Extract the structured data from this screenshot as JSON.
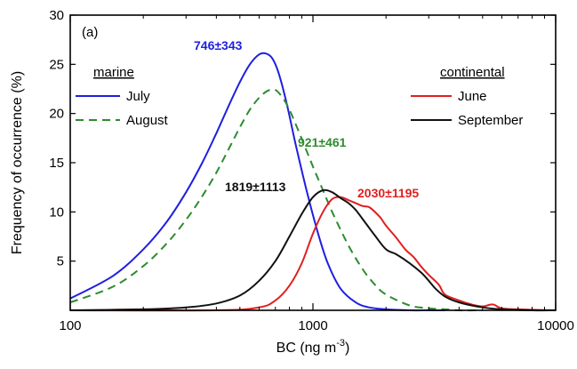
{
  "chart_data": {
    "type": "line",
    "panel_label": "(a)",
    "xlabel": "BC (ng m",
    "xlabel_sup": "-3",
    "xlabel_end": ")",
    "ylabel": "Frequency of occurrence (%)",
    "x_scale": "log",
    "xlim": [
      100,
      10000
    ],
    "ylim": [
      0,
      30
    ],
    "x_ticks": [
      100,
      1000,
      10000
    ],
    "x_tick_labels": [
      "100",
      "1000",
      "10000"
    ],
    "y_ticks": [
      5,
      10,
      15,
      20,
      25,
      30
    ],
    "y_tick_labels": [
      "5",
      "10",
      "15",
      "20",
      "25",
      "30"
    ],
    "grid": false,
    "legend_groups": [
      {
        "title": "marine",
        "placement": "top-left",
        "entries": [
          "July",
          "August"
        ]
      },
      {
        "title": "continental",
        "placement": "top-right",
        "entries": [
          "June",
          "September"
        ]
      }
    ],
    "series": [
      {
        "name": "July",
        "group": "marine",
        "color": "#1f1fe0",
        "dash": "solid",
        "annotation": "746±343",
        "annotation_color": "#1f1fe0",
        "x": [
          100,
          150,
          200,
          250,
          300,
          350,
          400,
          450,
          500,
          550,
          600,
          640,
          680,
          720,
          780,
          850,
          950,
          1050,
          1150,
          1300,
          1500,
          1700,
          2000,
          2500,
          3000,
          3500
        ],
        "y": [
          1.2,
          3.5,
          6.2,
          9.0,
          12.0,
          15.0,
          18.0,
          20.8,
          23.2,
          25.0,
          26.0,
          26.1,
          25.6,
          24.2,
          21.0,
          16.8,
          11.8,
          7.8,
          4.8,
          2.2,
          0.8,
          0.3,
          0.1,
          0.0,
          0.0,
          0.0
        ]
      },
      {
        "name": "August",
        "group": "marine",
        "color": "#2e8b2e",
        "dash": "dashed",
        "annotation": "921±461",
        "annotation_color": "#2e8b2e",
        "x": [
          100,
          150,
          200,
          250,
          300,
          350,
          400,
          450,
          500,
          550,
          600,
          650,
          700,
          750,
          800,
          900,
          1000,
          1100,
          1200,
          1400,
          1600,
          1800,
          2000,
          2500,
          3000,
          3500,
          4000,
          5000
        ],
        "y": [
          0.8,
          2.4,
          4.5,
          6.8,
          9.2,
          11.6,
          14.0,
          16.4,
          18.6,
          20.4,
          21.6,
          22.3,
          22.4,
          21.6,
          20.4,
          17.4,
          14.6,
          12.2,
          10.0,
          6.6,
          4.2,
          2.6,
          1.6,
          0.5,
          0.2,
          0.1,
          0.0,
          0.0
        ]
      },
      {
        "name": "June",
        "group": "continental",
        "color": "#e01f1f",
        "dash": "solid",
        "annotation": "2030±1195",
        "annotation_color": "#e01f1f",
        "x": [
          100,
          400,
          600,
          700,
          800,
          900,
          1000,
          1100,
          1200,
          1300,
          1400,
          1500,
          1600,
          1700,
          1800,
          1900,
          2000,
          2200,
          2400,
          2600,
          2800,
          3000,
          3300,
          3500,
          4000,
          4500,
          5000,
          5500,
          6000,
          7000,
          8000,
          10000
        ],
        "y": [
          0.0,
          0.0,
          0.3,
          1.0,
          2.5,
          4.8,
          7.8,
          10.0,
          11.3,
          11.5,
          11.2,
          10.9,
          10.6,
          10.5,
          10.0,
          9.4,
          8.6,
          7.4,
          6.2,
          5.4,
          4.4,
          3.6,
          2.6,
          1.6,
          1.0,
          0.6,
          0.4,
          0.6,
          0.2,
          0.1,
          0.05,
          0.0
        ]
      },
      {
        "name": "September",
        "group": "continental",
        "color": "#111111",
        "dash": "solid",
        "annotation": "1819±1113",
        "annotation_color": "#111111",
        "x": [
          100,
          200,
          300,
          400,
          500,
          600,
          700,
          800,
          900,
          1000,
          1100,
          1200,
          1300,
          1400,
          1500,
          1600,
          1800,
          2000,
          2200,
          2500,
          2800,
          3000,
          3200,
          3500,
          4000,
          5000,
          6000,
          8000,
          10000
        ],
        "y": [
          0.0,
          0.1,
          0.3,
          0.7,
          1.5,
          3.0,
          5.0,
          7.5,
          9.8,
          11.5,
          12.2,
          12.0,
          11.4,
          10.9,
          10.2,
          9.3,
          7.6,
          6.2,
          5.7,
          4.8,
          3.8,
          3.0,
          2.2,
          1.4,
          0.8,
          0.3,
          0.1,
          0.0,
          0.0
        ]
      }
    ]
  }
}
